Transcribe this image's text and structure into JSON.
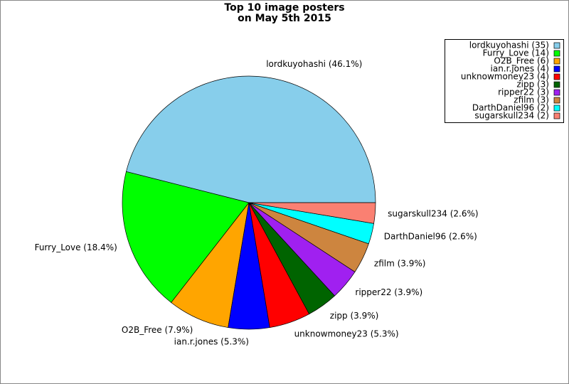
{
  "chart_data": {
    "type": "pie",
    "title": [
      "Top 10 image posters",
      "on May 5th 2015"
    ],
    "values": [
      35,
      14,
      6,
      4,
      4,
      3,
      3,
      3,
      2,
      2
    ],
    "slice_labels": [
      "lordkuyohashi (46.1%)",
      "Furry_Love (18.4%)",
      "O2B_Free (7.9%)",
      "ian.r.jones (5.3%)",
      "unknowmoney23 (5.3%)",
      "zipp (3.9%)",
      "ripper22 (3.9%)",
      "zfilm (3.9%)",
      "DarthDaniel96 (2.6%)",
      "sugarskull234 (2.6%)"
    ],
    "legend_labels": [
      "lordkuyohashi (35)",
      "Furry_Love (14)",
      "O2B_Free (6)",
      "ian.r.jones (4)",
      "unknowmoney23 (4)",
      "zipp (3)",
      "ripper22 (3)",
      "zfilm (3)",
      "DarthDaniel96 (2)",
      "sugarskull234 (2)"
    ],
    "colors": [
      "#87ceeb",
      "#00ff00",
      "#ffa500",
      "#0000ff",
      "#ff0000",
      "#006400",
      "#a020f0",
      "#cd853f",
      "#00ffff",
      "#fa8072"
    ],
    "legend": "upper right"
  }
}
